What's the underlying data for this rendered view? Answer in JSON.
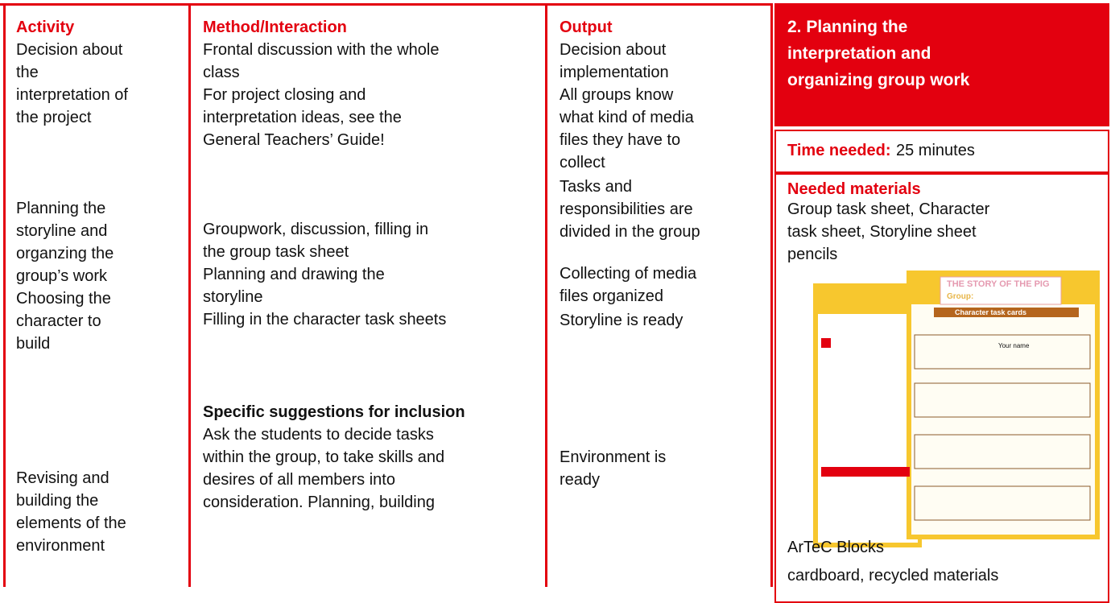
{
  "columns": [
    {
      "heading": "Activity",
      "blocks": [
        {
          "lines": [
            "Decision about",
            "the",
            "interpretation of",
            "the project"
          ]
        },
        {
          "lines": [
            "Planning the",
            "storyline and",
            "organzing the",
            "group’s work",
            "Choosing the",
            "character to",
            "build"
          ]
        },
        {
          "lines": [
            "Revising and",
            "building the",
            "elements of the",
            "environment"
          ]
        }
      ]
    },
    {
      "heading": "Method/Interaction",
      "blocks": [
        {
          "lines": [
            "Frontal discussion with the whole",
            "class",
            "For project closing and",
            "interpretation ideas, see the",
            "General Teachers’ Guide!"
          ]
        },
        {
          "lines": [
            "Groupwork, discussion, filling in",
            "the group task sheet",
            "Planning and drawing the",
            "storyline",
            "Filling in the character task sheets"
          ]
        },
        {
          "heading": "Specific suggestions for inclusion",
          "lines": [
            "Ask the students to decide tasks",
            "within the group, to take skills and",
            "desires of all members into",
            "consideration. Planning, building"
          ]
        }
      ]
    },
    {
      "heading": "Output",
      "blocks": [
        {
          "lines": [
            "Decision about",
            "implementation",
            "All groups know",
            "what kind of media",
            "files they have to",
            "collect"
          ]
        },
        {
          "lines": [
            "Tasks and",
            "responsibilities are",
            "divided in the group"
          ]
        },
        {
          "lines": [
            "Collecting of media",
            "files organized"
          ]
        },
        {
          "lines": [
            "Storyline is ready"
          ]
        },
        {
          "lines": [
            "Environment is",
            "ready"
          ]
        }
      ]
    }
  ],
  "overview": {
    "title_lines": [
      "2. Planning the",
      "interpretation and",
      "organizing group work"
    ],
    "time_label": "Time needed:",
    "time_value": "25 minutes",
    "materials_heading": "Needed materials",
    "materials_lines": [
      "Group task sheet, Character",
      "task sheet, Storyline sheet",
      "pencils"
    ],
    "materials_after": [
      "ArTeC Blocks",
      "cardboard, recycled materials"
    ],
    "sheet_title": "THE STORY OF THE PIG",
    "sheet_group": "Group:",
    "sheet_banner": "Character task cards",
    "sheet_name": "Your name"
  }
}
